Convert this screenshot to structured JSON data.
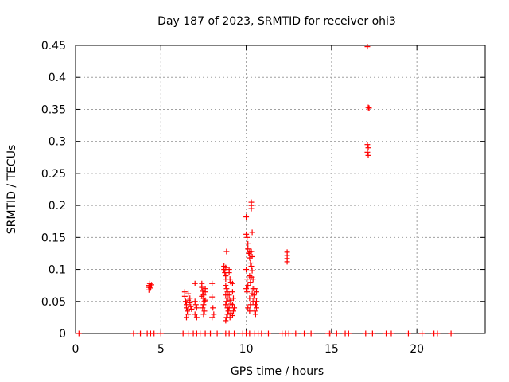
{
  "chart_data": {
    "type": "scatter",
    "title": "Day 187 of 2023, SRMTID for receiver ohi3",
    "xlabel": "GPS time / hours",
    "ylabel": "SRMTID / TECUs",
    "xlim": [
      0,
      24
    ],
    "ylim": [
      0,
      0.45
    ],
    "xticks": [
      0,
      5,
      10,
      15,
      20
    ],
    "xtick_labels": [
      "0",
      "5",
      "10",
      "15",
      "20"
    ],
    "yticks": [
      0,
      0.05,
      0.1,
      0.15,
      0.2,
      0.25,
      0.3,
      0.35,
      0.4,
      0.45
    ],
    "ytick_labels": [
      "0",
      "0.05",
      "0.1",
      "0.15",
      "0.2",
      "0.25",
      "0.3",
      "0.35",
      "0.4",
      "0.45"
    ],
    "grid": true,
    "marker": "+",
    "color": "#ff0000",
    "series": [
      {
        "name": "SRMTID",
        "points": [
          [
            0.2,
            0
          ],
          [
            3.4,
            0
          ],
          [
            3.8,
            0
          ],
          [
            4.2,
            0
          ],
          [
            4.4,
            0
          ],
          [
            4.6,
            0
          ],
          [
            5.0,
            0
          ],
          [
            6.3,
            0
          ],
          [
            6.6,
            0
          ],
          [
            6.9,
            0
          ],
          [
            7.1,
            0
          ],
          [
            7.3,
            0
          ],
          [
            7.6,
            0
          ],
          [
            7.9,
            0
          ],
          [
            8.3,
            0
          ],
          [
            8.8,
            0
          ],
          [
            9.0,
            0
          ],
          [
            9.3,
            0
          ],
          [
            9.8,
            0
          ],
          [
            10.0,
            0
          ],
          [
            10.2,
            0
          ],
          [
            10.5,
            0
          ],
          [
            10.7,
            0
          ],
          [
            10.9,
            0
          ],
          [
            11.3,
            0
          ],
          [
            12.1,
            0
          ],
          [
            12.3,
            0
          ],
          [
            12.5,
            0
          ],
          [
            12.9,
            0
          ],
          [
            13.4,
            0
          ],
          [
            13.8,
            0
          ],
          [
            14.8,
            0
          ],
          [
            14.9,
            0
          ],
          [
            15.3,
            0
          ],
          [
            15.8,
            0
          ],
          [
            16.0,
            0
          ],
          [
            17.0,
            0
          ],
          [
            17.4,
            0
          ],
          [
            18.2,
            0
          ],
          [
            18.5,
            0
          ],
          [
            19.5,
            0
          ],
          [
            20.3,
            0
          ],
          [
            21.0,
            0
          ],
          [
            21.2,
            0
          ],
          [
            22.0,
            0
          ],
          [
            4.3,
            0.068
          ],
          [
            4.3,
            0.072
          ],
          [
            4.3,
            0.075
          ],
          [
            4.35,
            0.078
          ],
          [
            4.4,
            0.074
          ],
          [
            4.4,
            0.071
          ],
          [
            4.45,
            0.076
          ],
          [
            6.4,
            0.065
          ],
          [
            6.4,
            0.058
          ],
          [
            6.45,
            0.05
          ],
          [
            6.5,
            0.045
          ],
          [
            6.5,
            0.04
          ],
          [
            6.55,
            0.035
          ],
          [
            6.6,
            0.03
          ],
          [
            6.6,
            0.062
          ],
          [
            6.7,
            0.055
          ],
          [
            6.7,
            0.048
          ],
          [
            6.75,
            0.042
          ],
          [
            6.8,
            0.038
          ],
          [
            6.5,
            0.025
          ],
          [
            6.6,
            0.052
          ],
          [
            7.0,
            0.078
          ],
          [
            7.0,
            0.05
          ],
          [
            7.05,
            0.045
          ],
          [
            7.1,
            0.04
          ],
          [
            7.0,
            0.03
          ],
          [
            7.1,
            0.025
          ],
          [
            7.4,
            0.078
          ],
          [
            7.4,
            0.072
          ],
          [
            7.45,
            0.066
          ],
          [
            7.5,
            0.06
          ],
          [
            7.5,
            0.055
          ],
          [
            7.55,
            0.05
          ],
          [
            7.5,
            0.045
          ],
          [
            7.45,
            0.04
          ],
          [
            7.55,
            0.035
          ],
          [
            7.5,
            0.03
          ],
          [
            7.6,
            0.07
          ],
          [
            7.6,
            0.065
          ],
          [
            7.4,
            0.058
          ],
          [
            7.6,
            0.052
          ],
          [
            8.0,
            0.078
          ],
          [
            8.0,
            0.057
          ],
          [
            8.05,
            0.04
          ],
          [
            8.1,
            0.03
          ],
          [
            8.0,
            0.025
          ],
          [
            8.7,
            0.105
          ],
          [
            8.7,
            0.1
          ],
          [
            8.75,
            0.095
          ],
          [
            8.8,
            0.09
          ],
          [
            8.8,
            0.085
          ],
          [
            8.85,
            0.128
          ],
          [
            8.8,
            0.075
          ],
          [
            8.85,
            0.07
          ],
          [
            8.9,
            0.065
          ],
          [
            8.8,
            0.06
          ],
          [
            8.9,
            0.055
          ],
          [
            8.85,
            0.05
          ],
          [
            8.8,
            0.045
          ],
          [
            8.9,
            0.04
          ],
          [
            8.95,
            0.035
          ],
          [
            8.9,
            0.03
          ],
          [
            8.85,
            0.025
          ],
          [
            8.8,
            0.02
          ],
          [
            9.0,
            0.1
          ],
          [
            9.0,
            0.095
          ],
          [
            9.05,
            0.085
          ],
          [
            9.1,
            0.08
          ],
          [
            9.0,
            0.06
          ],
          [
            9.05,
            0.052
          ],
          [
            9.1,
            0.046
          ],
          [
            9.0,
            0.04
          ],
          [
            9.1,
            0.032
          ],
          [
            9.05,
            0.025
          ],
          [
            9.2,
            0.078
          ],
          [
            9.2,
            0.065
          ],
          [
            9.25,
            0.055
          ],
          [
            9.2,
            0.045
          ],
          [
            9.25,
            0.035
          ],
          [
            9.2,
            0.028
          ],
          [
            9.3,
            0.04
          ],
          [
            8.8,
            0.103
          ],
          [
            10.0,
            0.182
          ],
          [
            10.0,
            0.155
          ],
          [
            10.05,
            0.15
          ],
          [
            10.1,
            0.14
          ],
          [
            10.1,
            0.132
          ],
          [
            10.15,
            0.125
          ],
          [
            10.0,
            0.1
          ],
          [
            10.05,
            0.085
          ],
          [
            10.1,
            0.075
          ],
          [
            10.0,
            0.07
          ],
          [
            10.05,
            0.065
          ],
          [
            10.1,
            0.04
          ],
          [
            10.2,
            0.127
          ],
          [
            10.2,
            0.118
          ],
          [
            10.25,
            0.11
          ],
          [
            10.2,
            0.09
          ],
          [
            10.25,
            0.08
          ],
          [
            10.2,
            0.055
          ],
          [
            10.25,
            0.045
          ],
          [
            10.2,
            0.035
          ],
          [
            10.3,
            0.2
          ],
          [
            10.3,
            0.195
          ],
          [
            10.3,
            0.205
          ],
          [
            10.35,
            0.158
          ],
          [
            10.3,
            0.128
          ],
          [
            10.35,
            0.12
          ],
          [
            10.3,
            0.105
          ],
          [
            10.35,
            0.098
          ],
          [
            10.3,
            0.088
          ],
          [
            10.35,
            0.062
          ],
          [
            10.4,
            0.085
          ],
          [
            10.4,
            0.07
          ],
          [
            10.45,
            0.06
          ],
          [
            10.4,
            0.05
          ],
          [
            10.5,
            0.07
          ],
          [
            10.5,
            0.055
          ],
          [
            10.55,
            0.045
          ],
          [
            10.5,
            0.035
          ],
          [
            10.55,
            0.03
          ],
          [
            10.6,
            0.065
          ],
          [
            10.6,
            0.05
          ],
          [
            10.6,
            0.04
          ],
          [
            12.4,
            0.127
          ],
          [
            12.4,
            0.122
          ],
          [
            12.4,
            0.117
          ],
          [
            12.4,
            0.112
          ],
          [
            17.1,
            0.448
          ],
          [
            17.15,
            0.353
          ],
          [
            17.2,
            0.352
          ],
          [
            17.1,
            0.295
          ],
          [
            17.15,
            0.29
          ],
          [
            17.1,
            0.283
          ],
          [
            17.15,
            0.278
          ]
        ]
      }
    ]
  }
}
